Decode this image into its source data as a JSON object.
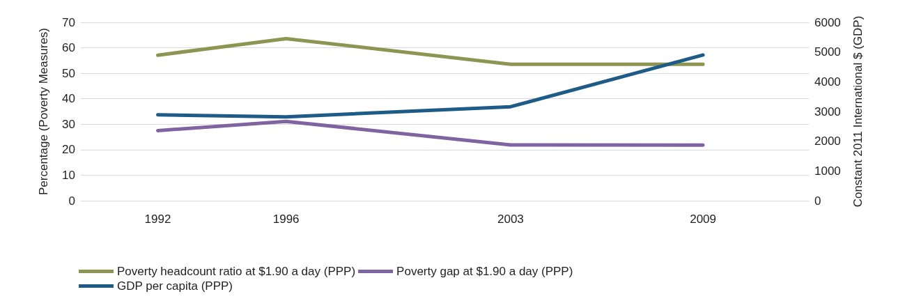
{
  "chart_data": {
    "type": "line",
    "ylabel": "Percentage (Poverty Measures)",
    "y2label": "Constant 2011 International $ (GDP)",
    "x": [
      1992,
      1996,
      2003,
      2009
    ],
    "xlim": [
      1989.6,
      2012.3
    ],
    "xticks": [
      1992,
      1996,
      2003,
      2009
    ],
    "ylim": [
      0,
      70
    ],
    "yticks": [
      0,
      10,
      20,
      30,
      40,
      50,
      60,
      70
    ],
    "y2lim": [
      0,
      6000
    ],
    "y2ticks": [
      0,
      1000,
      2000,
      3000,
      4000,
      5000,
      6000
    ],
    "grid": "y",
    "legend": "bottom",
    "marker": "none",
    "line_style": "solid",
    "series": [
      {
        "name": "Poverty headcount ratio at $1.90 a day (PPP)",
        "color": "#8c9552",
        "values": [
          57.1,
          63.6,
          53.5,
          53.5
        ]
      },
      {
        "name": "Poverty gap at $1.90 a day (PPP)",
        "color": "#8064a2",
        "values": [
          27.5,
          31.1,
          21.9,
          21.8
        ]
      },
      {
        "name": "GDP per capita (PPP)",
        "color": "#1f5b87",
        "axis": "y2",
        "values": [
          2890,
          2820,
          3160,
          4900
        ]
      }
    ]
  }
}
